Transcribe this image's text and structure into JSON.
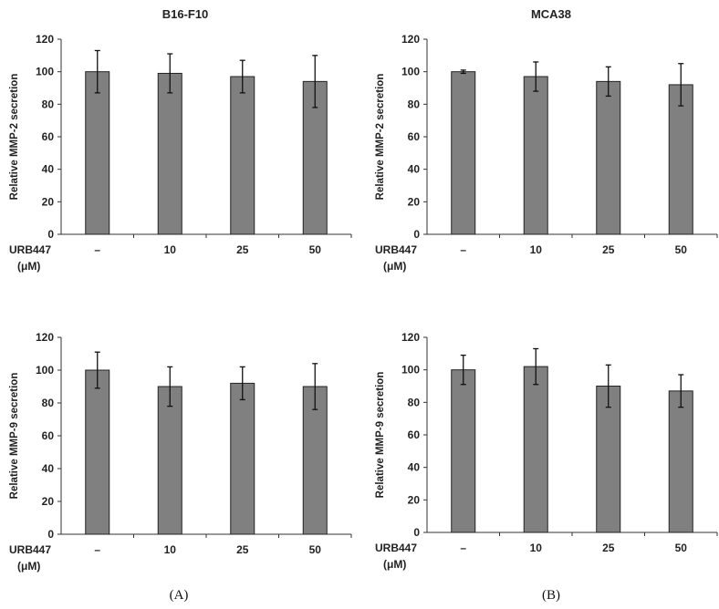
{
  "figure": {
    "titles": [
      "B16-F10",
      "MCA38"
    ],
    "panel_letters": [
      "(A)",
      "(B)"
    ],
    "bar_color": "#808080",
    "x_axis_label_line1": "URB447",
    "x_axis_label_line2": "(μM)"
  },
  "chart_data": [
    {
      "type": "bar",
      "title": "B16-F10",
      "categories": [
        "–",
        "10",
        "25",
        "50"
      ],
      "values": [
        100,
        99,
        97,
        94
      ],
      "errors": [
        13,
        12,
        10,
        16
      ],
      "ylabel": "Relative MMP-2 secretion",
      "xlabel": "URB447 (μM)",
      "ylim": [
        0,
        120
      ],
      "yticks": [
        0,
        20,
        40,
        60,
        80,
        100,
        120
      ]
    },
    {
      "type": "bar",
      "title": "MCA38",
      "categories": [
        "–",
        "10",
        "25",
        "50"
      ],
      "values": [
        100,
        97,
        94,
        92
      ],
      "errors": [
        1,
        9,
        9,
        13
      ],
      "ylabel": "Relative MMP-2 secretion",
      "xlabel": "URB447 (μM)",
      "ylim": [
        0,
        120
      ],
      "yticks": [
        0,
        20,
        40,
        60,
        80,
        100,
        120
      ]
    },
    {
      "type": "bar",
      "title": "",
      "categories": [
        "–",
        "10",
        "25",
        "50"
      ],
      "values": [
        100,
        90,
        92,
        90
      ],
      "errors": [
        11,
        12,
        10,
        14
      ],
      "ylabel": "Relative MMP-9 secretion",
      "xlabel": "URB447 (μM)",
      "ylim": [
        0,
        120
      ],
      "yticks": [
        0,
        20,
        40,
        60,
        80,
        100,
        120
      ]
    },
    {
      "type": "bar",
      "title": "",
      "categories": [
        "–",
        "10",
        "25",
        "50"
      ],
      "values": [
        100,
        102,
        90,
        87
      ],
      "errors": [
        9,
        11,
        13,
        10
      ],
      "ylabel": "Relative MMP-9 secretion",
      "xlabel": "URB447 (μM)",
      "ylim": [
        0,
        120
      ],
      "yticks": [
        0,
        20,
        40,
        60,
        80,
        100,
        120
      ]
    }
  ]
}
